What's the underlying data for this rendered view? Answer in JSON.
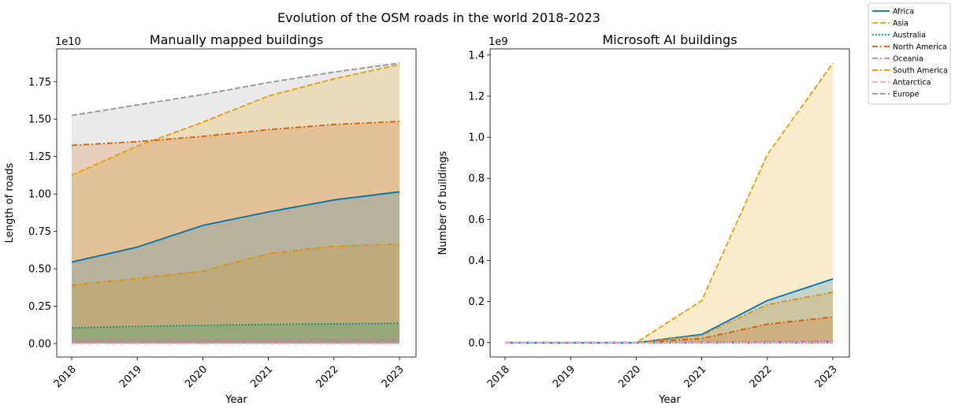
{
  "figure_title": "Evolution of the OSM roads in the world 2018-2023",
  "legend": [
    {
      "name": "Africa",
      "color": "#0072b2",
      "dash": "solid"
    },
    {
      "name": "Asia",
      "color": "#e69f00",
      "dash": "dashed"
    },
    {
      "name": "Australia",
      "color": "#009e73",
      "dash": "dotted"
    },
    {
      "name": "North America",
      "color": "#d55e00",
      "dash": "dashdot"
    },
    {
      "name": "Oceania",
      "color": "#cc79a7",
      "dash": "dashdot"
    },
    {
      "name": "South America",
      "color": "#de8f05",
      "dash": "dashdot"
    },
    {
      "name": "Antarctica",
      "color": "#f0a3d8",
      "dash": "dashed"
    },
    {
      "name": "Europe",
      "color": "#949494",
      "dash": "dashed"
    }
  ],
  "chart_data": [
    {
      "type": "area",
      "title": "Manually mapped buildings",
      "xlabel": "Year",
      "ylabel": "Length of roads",
      "y_offset_label": "1e10",
      "x": [
        "2018",
        "2019",
        "2020",
        "2021",
        "2022",
        "2023"
      ],
      "ylim": [
        -0.09,
        1.97
      ],
      "yticks": [
        "0.00",
        "0.25",
        "0.50",
        "0.75",
        "1.00",
        "1.25",
        "1.50",
        "1.75"
      ],
      "series": [
        {
          "name": "Europe",
          "values": [
            1.525,
            1.595,
            1.665,
            1.745,
            1.815,
            1.875
          ]
        },
        {
          "name": "Asia",
          "values": [
            1.125,
            1.32,
            1.48,
            1.655,
            1.77,
            1.865
          ]
        },
        {
          "name": "North America",
          "values": [
            1.325,
            1.35,
            1.385,
            1.43,
            1.465,
            1.485
          ]
        },
        {
          "name": "Africa",
          "values": [
            0.545,
            0.645,
            0.79,
            0.88,
            0.96,
            1.015
          ]
        },
        {
          "name": "South America",
          "values": [
            0.39,
            0.435,
            0.485,
            0.6,
            0.65,
            0.665
          ]
        },
        {
          "name": "Australia",
          "values": [
            0.105,
            0.115,
            0.122,
            0.128,
            0.132,
            0.135
          ]
        },
        {
          "name": "Oceania",
          "values": [
            0.02,
            0.021,
            0.022,
            0.023,
            0.024,
            0.025
          ]
        },
        {
          "name": "Antarctica",
          "values": [
            0.0,
            0.0,
            0.0,
            0.0,
            0.0,
            0.0
          ]
        }
      ]
    },
    {
      "type": "area",
      "title": "Microsoft AI buildings",
      "xlabel": "Year",
      "ylabel": "Number of buildings",
      "y_offset_label": "1e9",
      "x": [
        "2018",
        "2019",
        "2020",
        "2021",
        "2022",
        "2023"
      ],
      "ylim": [
        -0.07,
        1.43
      ],
      "yticks": [
        "0.0",
        "0.2",
        "0.4",
        "0.6",
        "0.8",
        "1.0",
        "1.2",
        "1.4"
      ],
      "series": [
        {
          "name": "Asia",
          "values": [
            0.0,
            0.0,
            0.0,
            0.205,
            0.915,
            1.36
          ]
        },
        {
          "name": "Africa",
          "values": [
            0.0,
            0.0,
            0.0,
            0.04,
            0.205,
            0.31
          ]
        },
        {
          "name": "South America",
          "values": [
            0.0,
            0.0,
            0.0,
            0.035,
            0.185,
            0.245
          ]
        },
        {
          "name": "North America",
          "values": [
            0.0,
            0.0,
            0.0,
            0.02,
            0.09,
            0.125
          ]
        },
        {
          "name": "Oceania",
          "values": [
            0.0,
            0.0,
            0.0,
            0.002,
            0.005,
            0.008
          ]
        },
        {
          "name": "Europe",
          "values": [
            0.0,
            0.0,
            0.0,
            0.0,
            0.0,
            0.0
          ]
        },
        {
          "name": "Australia",
          "values": [
            0.0,
            0.0,
            0.0,
            0.0,
            0.0,
            0.0
          ]
        },
        {
          "name": "Antarctica",
          "values": [
            0.0,
            0.0,
            0.0,
            0.0,
            0.0,
            0.0
          ]
        }
      ]
    }
  ]
}
